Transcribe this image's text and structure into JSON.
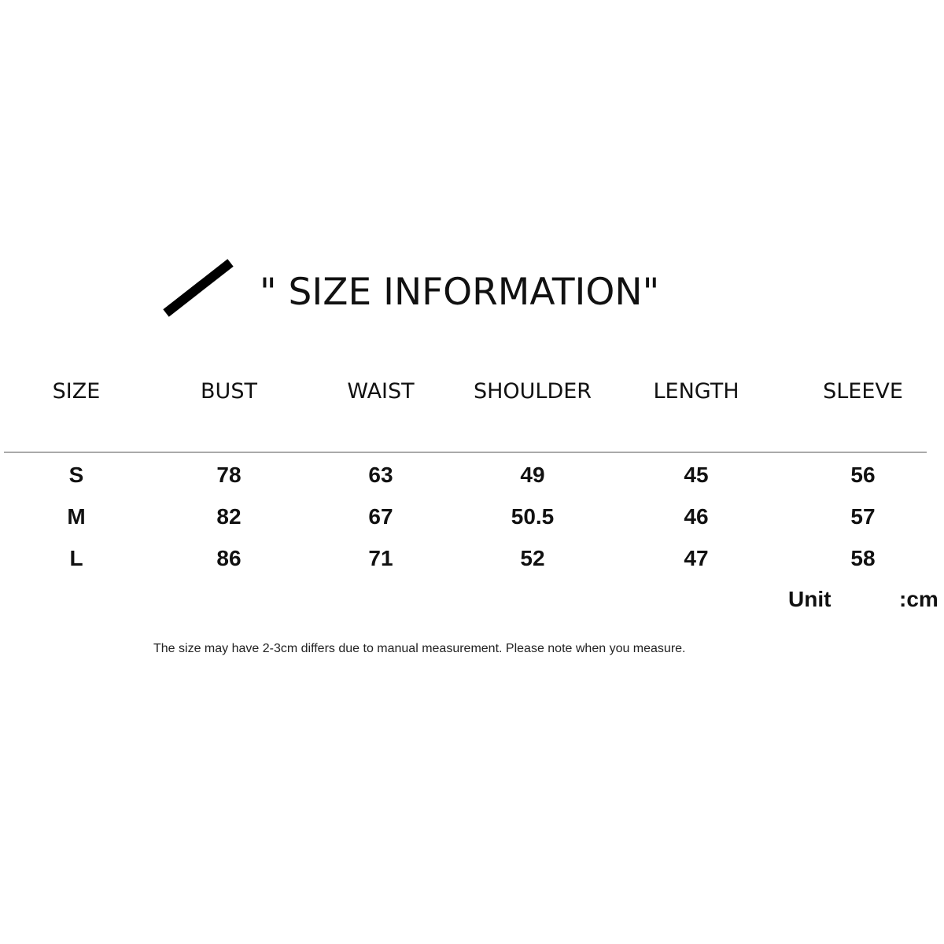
{
  "title": "\" SIZE INFORMATION\"",
  "table": {
    "headers": [
      "SIZE",
      "BUST",
      "WAIST",
      "SHOULDER",
      "LENGTH",
      "SLEEVE"
    ],
    "rows": [
      [
        "S",
        "78",
        "63",
        "49",
        "45",
        "56"
      ],
      [
        "M",
        "82",
        "67",
        "50.5",
        "46",
        "57"
      ],
      [
        "L",
        "86",
        "71",
        "52",
        "47",
        "58"
      ]
    ]
  },
  "unit": {
    "label": "Unit",
    "value": ":cm"
  },
  "note": "The size may have 2-3cm differs due to manual measurement. Please note when you measure."
}
